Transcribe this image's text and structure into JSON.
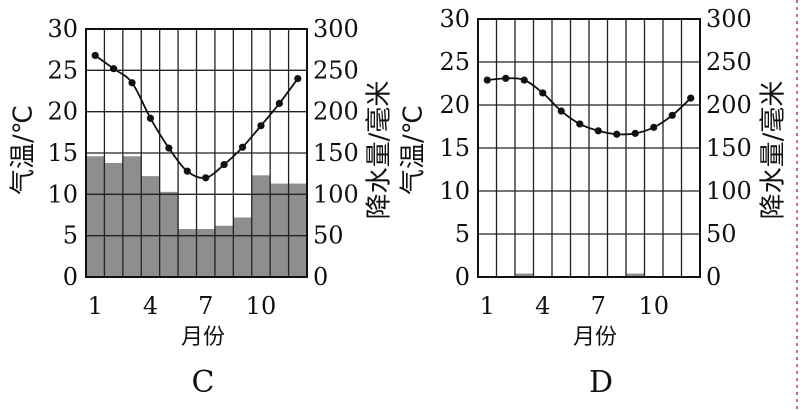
{
  "chart_data": [
    {
      "type": "bar+line",
      "label": "C",
      "xlabel": "月份",
      "ylabel_left": "气温/℃",
      "ylabel_right": "降水量/毫米",
      "x_ticks": [
        "1",
        "4",
        "7",
        "10"
      ],
      "x_tick_months": [
        1,
        4,
        7,
        10
      ],
      "y_left_ticks": [
        "0",
        "5",
        "10",
        "15",
        "20",
        "25",
        "30"
      ],
      "y_right_ticks": [
        "0",
        "50",
        "100",
        "150",
        "200",
        "250",
        "300"
      ],
      "ylim_left": [
        0,
        30
      ],
      "ylim_right": [
        0,
        300
      ],
      "months": [
        1,
        2,
        3,
        4,
        5,
        6,
        7,
        8,
        9,
        10,
        11,
        12
      ],
      "temperature": [
        26.8,
        25.2,
        23.5,
        19.2,
        15.6,
        12.8,
        12.0,
        13.6,
        15.7,
        18.3,
        21.0,
        24.0
      ],
      "precipitation": [
        146,
        138,
        146,
        122,
        103,
        58,
        58,
        62,
        72,
        123,
        113,
        113
      ]
    },
    {
      "type": "bar+line",
      "label": "D",
      "xlabel": "月份",
      "ylabel_left": "气温/℃",
      "ylabel_right": "降水量/毫米",
      "x_ticks": [
        "1",
        "4",
        "7",
        "10"
      ],
      "x_tick_months": [
        1,
        4,
        7,
        10
      ],
      "y_left_ticks": [
        "0",
        "5",
        "10",
        "15",
        "20",
        "25",
        "30"
      ],
      "y_right_ticks": [
        "0",
        "50",
        "100",
        "150",
        "200",
        "250",
        "300"
      ],
      "ylim_left": [
        0,
        30
      ],
      "ylim_right": [
        0,
        300
      ],
      "months": [
        1,
        2,
        3,
        4,
        5,
        6,
        7,
        8,
        9,
        10,
        11,
        12
      ],
      "temperature": [
        22.9,
        23.1,
        22.9,
        21.4,
        19.3,
        17.8,
        17.0,
        16.6,
        16.7,
        17.4,
        18.8,
        20.8
      ],
      "precipitation": [
        0,
        0,
        4,
        0,
        0,
        0,
        0,
        0,
        4,
        0,
        0,
        0
      ]
    }
  ]
}
